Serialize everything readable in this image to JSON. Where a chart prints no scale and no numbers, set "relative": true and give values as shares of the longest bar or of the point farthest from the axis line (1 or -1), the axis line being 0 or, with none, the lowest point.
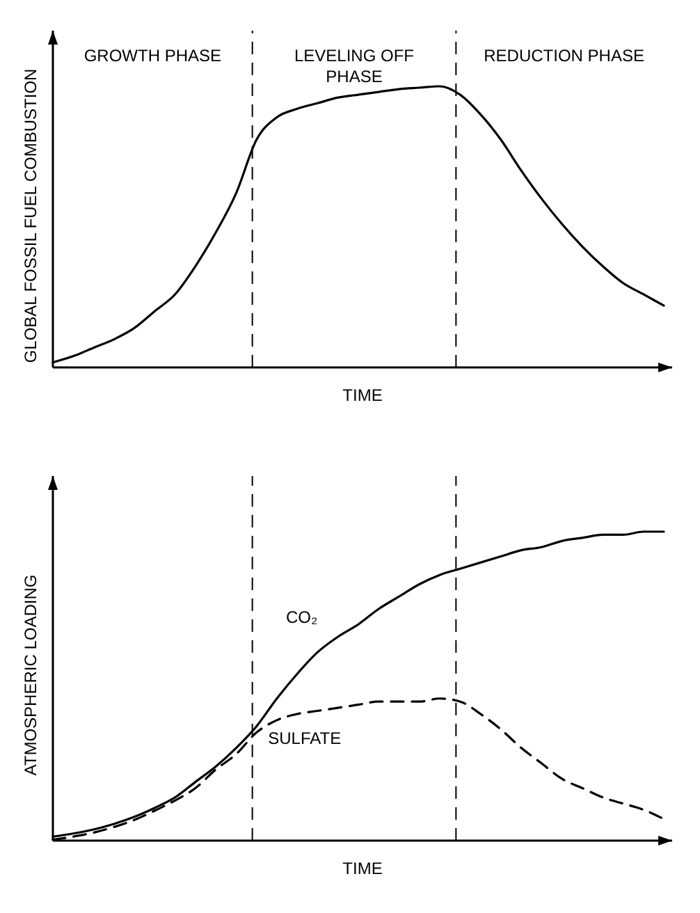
{
  "chart_data": [
    {
      "type": "line",
      "relative": true,
      "xlabel": "TIME",
      "ylabel": "GLOBAL FOSSIL FUEL COMBUSTION",
      "categories": [
        null,
        null,
        null,
        null,
        null,
        null,
        null,
        null,
        null,
        null,
        null,
        null,
        null,
        null,
        null,
        null,
        null,
        null,
        null,
        null,
        null,
        null,
        null,
        null,
        null,
        null,
        null,
        null,
        null,
        null,
        null
      ],
      "series": [
        {
          "color": "#000000",
          "line_style": "solid",
          "values": [
            0.018,
            0.04,
            0.07,
            0.1,
            0.14,
            0.2,
            0.26,
            0.36,
            0.48,
            0.62,
            0.81,
            0.89,
            0.92,
            0.94,
            0.96,
            0.97,
            0.98,
            0.99,
            0.995,
            1,
            0.97,
            0.9,
            0.81,
            0.7,
            0.6,
            0.51,
            0.43,
            0.36,
            0.3,
            0.26,
            0.22
          ]
        }
      ],
      "annotations": [
        "GROWTH PHASE",
        "LEVELING OFF PHASE",
        "REDUCTION PHASE"
      ]
    },
    {
      "type": "line",
      "relative": true,
      "xlabel": "TIME",
      "ylabel": "ATMOSPHERIC LOADING",
      "categories": [
        null,
        null,
        null,
        null,
        null,
        null,
        null,
        null,
        null,
        null,
        null,
        null,
        null,
        null,
        null,
        null,
        null,
        null,
        null,
        null,
        null,
        null,
        null,
        null,
        null,
        null,
        null,
        null,
        null,
        null,
        null
      ],
      "series": [
        {
          "name": "CO₂",
          "color": "#000000",
          "line_style": "solid",
          "values": [
            0.013,
            0.023,
            0.036,
            0.054,
            0.077,
            0.106,
            0.14,
            0.19,
            0.24,
            0.3,
            0.37,
            0.46,
            0.54,
            0.61,
            0.66,
            0.7,
            0.75,
            0.79,
            0.83,
            0.86,
            0.88,
            0.9,
            0.92,
            0.94,
            0.95,
            0.97,
            0.98,
            0.99,
            0.99,
            1,
            1
          ]
        },
        {
          "name": "SULFATE",
          "color": "#000000",
          "line_style": "dashed",
          "values": [
            0.003,
            0.013,
            0.026,
            0.044,
            0.067,
            0.097,
            0.13,
            0.17,
            0.23,
            0.28,
            0.35,
            0.39,
            0.41,
            0.42,
            0.43,
            0.44,
            0.45,
            0.45,
            0.45,
            0.46,
            0.45,
            0.41,
            0.36,
            0.3,
            0.25,
            0.2,
            0.17,
            0.14,
            0.12,
            0.1,
            0.07
          ]
        }
      ]
    }
  ]
}
